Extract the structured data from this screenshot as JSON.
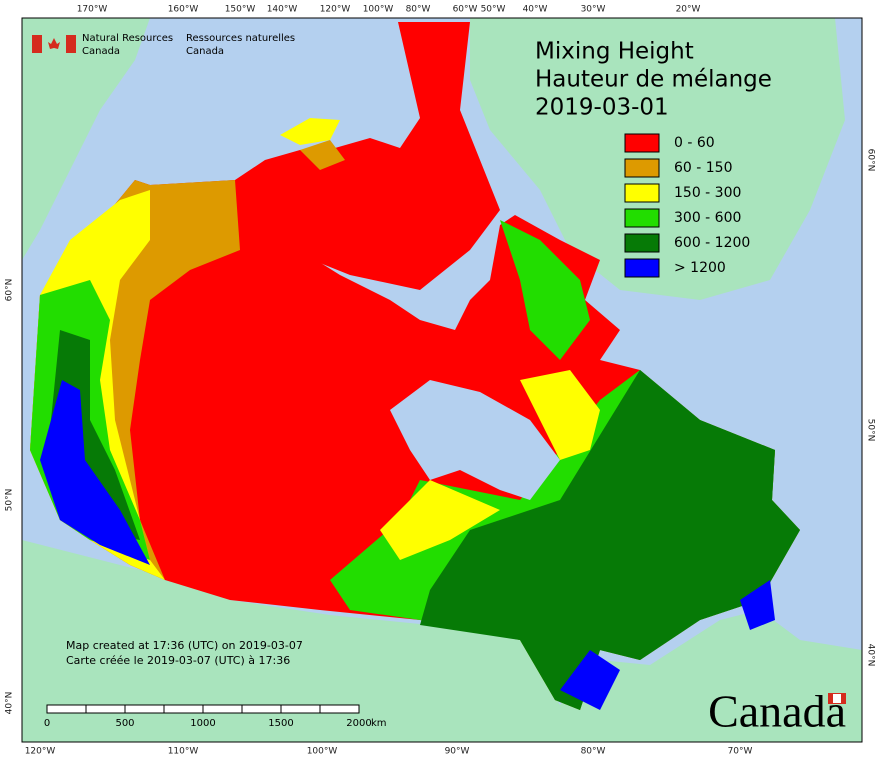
{
  "header": {
    "agency_en": [
      "Natural Resources",
      "Canada"
    ],
    "agency_fr": [
      "Ressources naturelles",
      "Canada"
    ]
  },
  "title": {
    "lines": [
      "Mixing Height",
      "Hauteur de mélange",
      "2019-03-01"
    ]
  },
  "legend": [
    {
      "label": "0 - 60",
      "color": "#ff0000"
    },
    {
      "label": "60 - 150",
      "color": "#dd9a00"
    },
    {
      "label": "150 - 300",
      "color": "#ffff00"
    },
    {
      "label": "300 - 600",
      "color": "#22dd00"
    },
    {
      "label": "600 - 1200",
      "color": "#067a06"
    },
    {
      "label": "> 1200",
      "color": "#0000ff"
    }
  ],
  "graticule": {
    "top": [
      "170°W",
      "160°W",
      "150°W",
      "140°W",
      "120°W",
      "100°W",
      "80°W",
      "60°W",
      "50°W",
      "40°W",
      "30°W",
      "20°W"
    ],
    "bottom": [
      "120°W",
      "110°W",
      "100°W",
      "90°W",
      "80°W",
      "70°W"
    ],
    "left": [
      "60°N",
      "50°N",
      "40°N"
    ],
    "right": [
      "60°N",
      "50°N",
      "40°N"
    ]
  },
  "footer": {
    "created_en": "Map created at 17:36 (UTC) on 2019-03-07",
    "created_fr": "Carte créée le 2019-03-07 (UTC) à 17:36"
  },
  "scale_bar": {
    "ticks": [
      "0",
      "500",
      "1000",
      "1500",
      "2000"
    ],
    "unit": "km"
  },
  "wordmark": "Canada"
}
